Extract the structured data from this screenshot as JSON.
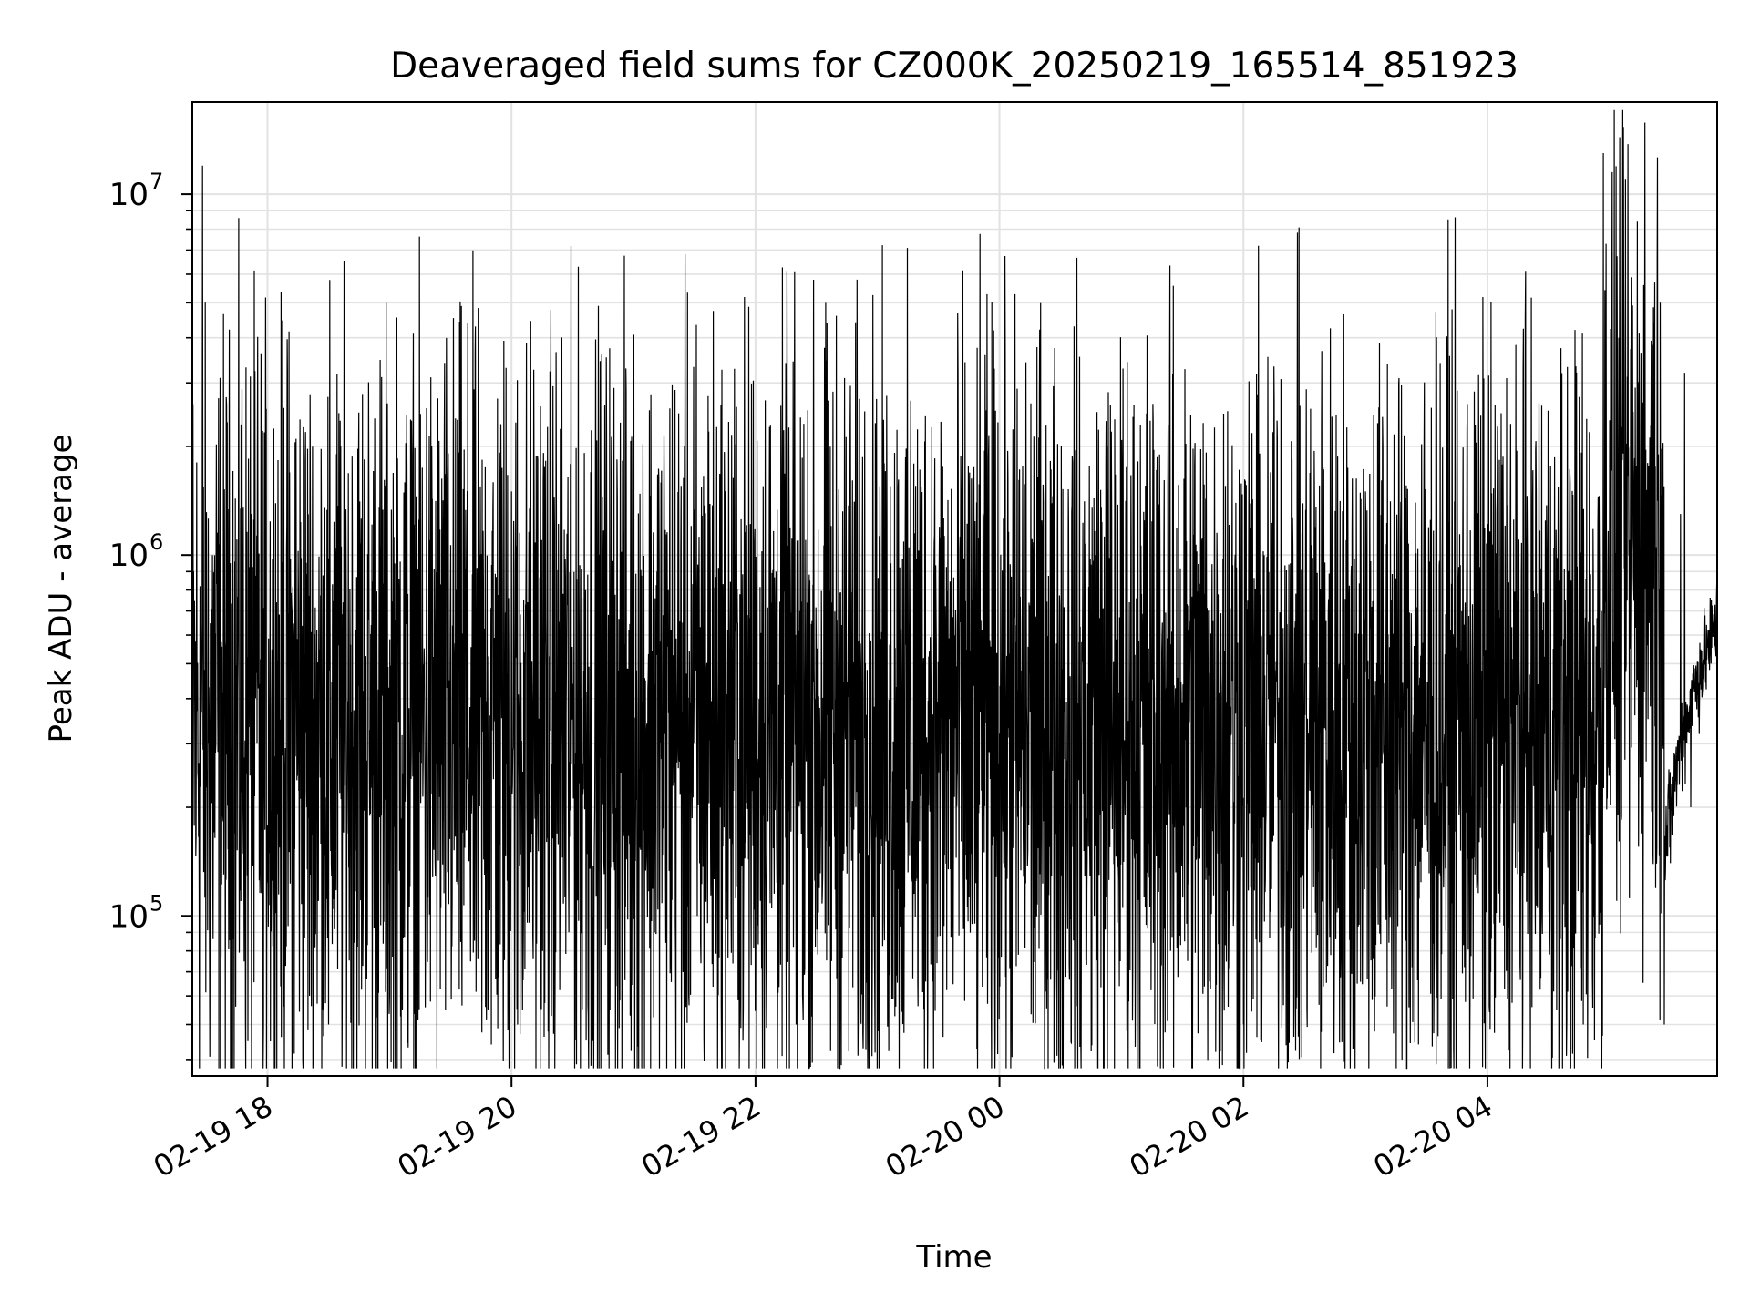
{
  "chart_data": {
    "type": "line",
    "title": "Deaveraged field sums for CZ000K_20250219_165514_851923",
    "xlabel": "Time",
    "ylabel": "Peak ADU - average",
    "yscale": "log",
    "xlim": [
      "2025-02-19T17:23",
      "2025-02-20T05:53"
    ],
    "ylim": [
      36000,
      18000000
    ],
    "grid": true,
    "line_color": "#000000",
    "x_ticks": [
      {
        "value": "2025-02-19T18:00",
        "label": "02-19 18"
      },
      {
        "value": "2025-02-19T20:00",
        "label": "02-19 20"
      },
      {
        "value": "2025-02-19T22:00",
        "label": "02-19 22"
      },
      {
        "value": "2025-02-20T00:00",
        "label": "02-20 00"
      },
      {
        "value": "2025-02-20T02:00",
        "label": "02-20 02"
      },
      {
        "value": "2025-02-20T04:00",
        "label": "02-20 04"
      }
    ],
    "y_ticks": [
      {
        "value": 100000,
        "base": "10",
        "exp": "5"
      },
      {
        "value": 1000000,
        "base": "10",
        "exp": "6"
      },
      {
        "value": 10000000,
        "base": "10",
        "exp": "7"
      }
    ],
    "series": [
      {
        "note": "dense noisy trace; representative sampled points (time, value)",
        "points": [
          [
            "2025-02-19T17:23",
            190000
          ],
          [
            "2025-02-19T17:25",
            550000
          ],
          [
            "2025-02-19T17:28",
            12000000
          ],
          [
            "2025-02-19T17:31",
            300000
          ],
          [
            "2025-02-19T17:35",
            900000
          ],
          [
            "2025-02-19T17:40",
            280000
          ],
          [
            "2025-02-19T17:47",
            2300000
          ],
          [
            "2025-02-19T17:52",
            150000
          ],
          [
            "2025-02-19T17:55",
            2000000
          ],
          [
            "2025-02-19T17:58",
            50000
          ],
          [
            "2025-02-19T18:05",
            400000
          ],
          [
            "2025-02-19T18:14",
            2100000
          ],
          [
            "2025-02-19T18:25",
            110000
          ],
          [
            "2025-02-19T18:30",
            50000
          ],
          [
            "2025-02-19T18:36",
            2000000
          ],
          [
            "2025-02-19T18:50",
            300000
          ],
          [
            "2025-02-19T19:00",
            60000
          ],
          [
            "2025-02-19T19:20",
            1100000
          ],
          [
            "2025-02-19T19:40",
            250000
          ],
          [
            "2025-02-19T20:00",
            1500000
          ],
          [
            "2025-02-19T20:03",
            50000
          ],
          [
            "2025-02-19T20:30",
            350000
          ],
          [
            "2025-02-19T20:40",
            45000
          ],
          [
            "2025-02-19T21:00",
            400000
          ],
          [
            "2025-02-19T21:30",
            300000
          ],
          [
            "2025-02-19T21:37",
            2200000
          ],
          [
            "2025-02-19T22:00",
            350000
          ],
          [
            "2025-02-19T22:20",
            50000
          ],
          [
            "2025-02-19T23:00",
            300000
          ],
          [
            "2025-02-19T23:30",
            250000
          ],
          [
            "2025-02-20T00:00",
            320000
          ],
          [
            "2025-02-20T00:40",
            45000
          ],
          [
            "2025-02-20T01:00",
            300000
          ],
          [
            "2025-02-20T01:30",
            350000
          ],
          [
            "2025-02-20T02:00",
            50000
          ],
          [
            "2025-02-20T02:30",
            350000
          ],
          [
            "2025-02-20T03:00",
            1500000
          ],
          [
            "2025-02-20T03:30",
            300000
          ],
          [
            "2025-02-20T04:00",
            350000
          ],
          [
            "2025-02-20T04:30",
            400000
          ],
          [
            "2025-02-20T04:50",
            600000
          ],
          [
            "2025-02-20T04:57",
            13000000
          ],
          [
            "2025-02-20T05:00",
            900000
          ],
          [
            "2025-02-20T05:10",
            1100000
          ],
          [
            "2025-02-20T05:20",
            1200000
          ],
          [
            "2025-02-20T05:25",
            5000000
          ],
          [
            "2025-02-20T05:27",
            50000
          ],
          [
            "2025-02-20T05:30",
            140000
          ],
          [
            "2025-02-20T05:35",
            1300000
          ],
          [
            "2025-02-20T05:37",
            3200000
          ],
          [
            "2025-02-20T05:40",
            200000
          ],
          [
            "2025-02-20T05:50",
            500000
          ],
          [
            "2025-02-20T05:53",
            650000
          ]
        ]
      }
    ]
  }
}
